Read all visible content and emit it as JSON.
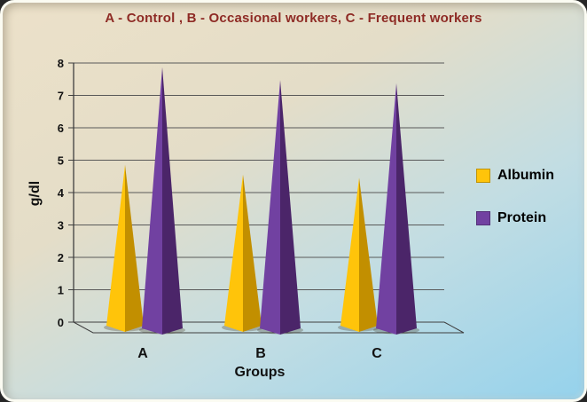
{
  "chart_data": {
    "type": "bar",
    "style": "3d-pyramid",
    "title": "A - Control , B - Occasional workers, C - Frequent workers",
    "xlabel": "Groups",
    "ylabel": "g/dl",
    "categories": [
      "A",
      "B",
      "C"
    ],
    "series": [
      {
        "name": "Albumin",
        "values": [
          4.8,
          4.5,
          4.4
        ],
        "color": "#FFC40A",
        "shade": "#C28F00"
      },
      {
        "name": "Protein",
        "values": [
          7.9,
          7.5,
          7.4
        ],
        "color": "#7141A1",
        "shade": "#4B2569"
      }
    ],
    "ylim": [
      0,
      8
    ],
    "ytick_step": 1,
    "yticks": [
      0,
      1,
      2,
      3,
      4,
      5,
      6,
      7,
      8
    ],
    "grid": true,
    "legend_position": "right"
  },
  "colors": {
    "title_text": "#8E2B25",
    "axis_text": "#111111",
    "gridline": "#595959",
    "axis_line": "#3f3f3f",
    "frame_bg_top_left": "#ECE1C9",
    "frame_bg_mid": "#E4DDC8",
    "frame_bg_bottom_right": "#95D2EC",
    "frame_border": "#FBFBF2"
  }
}
